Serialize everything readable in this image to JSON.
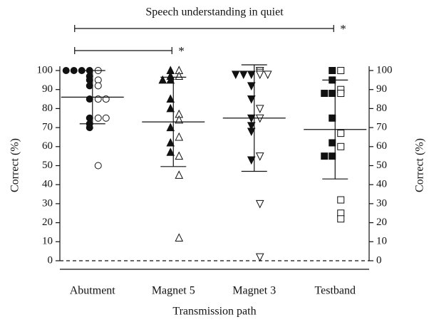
{
  "chart_data": {
    "type": "dot",
    "title": "Speech understanding in quiet",
    "xlabel": "Transmission path",
    "ylabel": "Correct (%)",
    "y2label": "Correct (%)",
    "categories": [
      "Abutment",
      "Magnet 5",
      "Magnet 3",
      "Testband"
    ],
    "groups": [
      {
        "marker": "circle",
        "filled": [
          100,
          100,
          100,
          100,
          97,
          95,
          92,
          85,
          75,
          72,
          70
        ],
        "open": [
          100,
          95,
          92,
          85,
          85,
          75,
          75,
          50
        ],
        "mean": 86,
        "sd": 14
      },
      {
        "marker": "triangle-up",
        "filled": [
          100,
          97,
          95,
          95,
          85,
          80,
          70,
          62,
          57
        ],
        "open": [
          100,
          97,
          77,
          74,
          65,
          55,
          45,
          12
        ],
        "mean": 73,
        "sd": 23.5
      },
      {
        "marker": "triangle-down",
        "filled": [
          98,
          98,
          98,
          92,
          85,
          75,
          71,
          68,
          53
        ],
        "open": [
          100,
          99,
          98,
          98,
          80,
          75,
          55,
          30,
          2
        ],
        "mean": 75,
        "sd": 28
      },
      {
        "marker": "square",
        "filled": [
          100,
          95,
          88,
          88,
          75,
          62,
          55,
          55
        ],
        "open": [
          100,
          90,
          88,
          67,
          60,
          32,
          25,
          22
        ],
        "mean": 69,
        "sd": 26
      }
    ],
    "color": "#111111",
    "ylim": [
      0,
      100
    ],
    "yticks": [
      0,
      10,
      20,
      30,
      40,
      50,
      60,
      70,
      80,
      90,
      100
    ],
    "y2lim": [
      0,
      100
    ],
    "y2ticks": [
      0,
      10,
      20,
      30,
      40,
      50,
      60,
      70,
      80,
      90,
      100
    ],
    "hline": 0,
    "annotations": [
      {
        "from": "Abutment",
        "to": "Testband",
        "label": "*"
      },
      {
        "from": "Abutment",
        "to": "Magnet 5",
        "label": "*"
      }
    ]
  }
}
